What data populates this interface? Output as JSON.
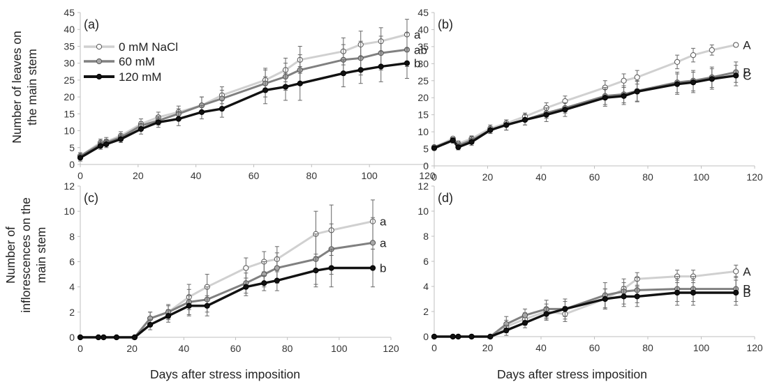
{
  "figure": {
    "ylabel_top_line1": "Number of leaves on",
    "ylabel_top_line2": "the main stem",
    "ylabel_bottom_line1": "Number of",
    "ylabel_bottom_line2": "inflorescences on the",
    "ylabel_bottom_line3": "main stem",
    "xlabel": "Days after stress imposition",
    "colors": {
      "s0": "#d0d0d0",
      "s60": "#808080",
      "s120": "#111111",
      "axis": "#bfbfbf"
    }
  },
  "chart_data": [
    {
      "id": "a",
      "type": "line",
      "panel_label": "(a)",
      "xlim": [
        0,
        120
      ],
      "xticks": [
        0,
        20,
        40,
        60,
        80,
        100,
        120
      ],
      "ylim": [
        0,
        45
      ],
      "yticks": [
        0,
        5,
        10,
        15,
        20,
        25,
        30,
        35,
        40,
        45
      ],
      "legend": [
        "0 mM NaCl",
        "60 mM",
        "120 mM"
      ],
      "x": [
        0,
        7,
        9,
        14,
        21,
        27,
        34,
        42,
        49,
        64,
        71,
        76,
        91,
        97,
        104,
        113
      ],
      "series": [
        {
          "name": "0 mM NaCl",
          "values": [
            2.5,
            6.5,
            6.8,
            8.5,
            12,
            14,
            15.5,
            17.5,
            20.5,
            25,
            28,
            31,
            33.5,
            35.5,
            36.5,
            38.5
          ],
          "err": [
            1,
            1,
            1.2,
            1.2,
            1.5,
            1.5,
            1.8,
            2.5,
            2.5,
            3.5,
            3.5,
            4,
            4,
            4,
            4,
            4.5
          ],
          "letter": "a"
        },
        {
          "name": "60 mM",
          "values": [
            2.5,
            6,
            6.5,
            8,
            11.5,
            13,
            15,
            17.5,
            19.5,
            24,
            26,
            28,
            31,
            31.5,
            33,
            34
          ],
          "err": [
            1,
            1,
            1,
            1,
            1.2,
            1.3,
            1.5,
            2.5,
            2.5,
            4,
            4,
            4.5,
            4.5,
            5,
            5,
            5
          ],
          "letter": "ab"
        },
        {
          "name": "120 mM",
          "values": [
            2,
            5.5,
            6,
            7.5,
            10.5,
            12.5,
            13.5,
            15.5,
            16.5,
            22,
            23,
            24,
            27,
            28,
            29,
            30
          ],
          "err": [
            1,
            1,
            1,
            1,
            1.5,
            1.5,
            2,
            2,
            2.5,
            4,
            4,
            5,
            4,
            4,
            4.5,
            4.5
          ],
          "letter": "b"
        }
      ]
    },
    {
      "id": "b",
      "type": "line",
      "panel_label": "(b)",
      "xlim": [
        0,
        120
      ],
      "xticks": [
        0,
        20,
        40,
        60,
        80,
        100,
        120
      ],
      "ylim": [
        0,
        45
      ],
      "yticks": [
        0,
        5,
        10,
        15,
        20,
        25,
        30,
        35,
        40,
        45
      ],
      "x": [
        0,
        7,
        9,
        14,
        21,
        27,
        34,
        42,
        49,
        64,
        71,
        76,
        91,
        97,
        104,
        113
      ],
      "series": [
        {
          "name": "0 mM NaCl",
          "values": [
            5.5,
            8,
            6.5,
            8,
            11,
            12.5,
            14.5,
            17,
            19,
            23,
            25,
            26,
            30.5,
            32.5,
            34,
            35.5
          ],
          "err": [
            0.5,
            0.5,
            0.8,
            0.8,
            1,
            1,
            1,
            1.5,
            1.5,
            2,
            2,
            2,
            2,
            2,
            1.5,
            0.5
          ],
          "letter": "A"
        },
        {
          "name": "60 mM",
          "values": [
            5.5,
            7.5,
            6,
            7.5,
            10.5,
            12,
            13.5,
            15.5,
            17,
            20.5,
            21,
            22,
            24.5,
            25,
            26,
            27.5
          ],
          "err": [
            0.5,
            0.8,
            0.8,
            1,
            1,
            1.5,
            1.5,
            1.5,
            1.5,
            2.5,
            2.5,
            3,
            3,
            3,
            3,
            3
          ],
          "letter": "B"
        },
        {
          "name": "120 mM",
          "values": [
            5.2,
            7.5,
            5.5,
            7,
            10.5,
            12,
            13.5,
            15,
            16.5,
            20,
            20.5,
            21.8,
            24,
            24.5,
            25.5,
            26.5
          ],
          "err": [
            0.5,
            0.8,
            0.8,
            1,
            1,
            1.5,
            1.5,
            2,
            2,
            2.5,
            2.5,
            3,
            3,
            3,
            3,
            3
          ],
          "letter": "C"
        }
      ]
    },
    {
      "id": "c",
      "type": "line",
      "panel_label": "(c)",
      "xlim": [
        0,
        120
      ],
      "xticks": [
        0,
        20,
        40,
        60,
        80,
        100,
        120
      ],
      "ylim": [
        0,
        12
      ],
      "yticks": [
        0,
        2,
        4,
        6,
        8,
        10,
        12
      ],
      "x": [
        0,
        7,
        9,
        14,
        21,
        27,
        34,
        42,
        49,
        64,
        71,
        76,
        91,
        97,
        113
      ],
      "series": [
        {
          "name": "0 mM NaCl",
          "values": [
            0,
            0,
            0,
            0,
            0,
            1.5,
            2,
            3.2,
            4,
            5.5,
            6,
            6.2,
            8.2,
            8.5,
            9.2
          ],
          "err": [
            0,
            0,
            0,
            0,
            0,
            0.5,
            0.6,
            1,
            1,
            0.8,
            0.8,
            1,
            1.8,
            2,
            1.7
          ],
          "letter": "a"
        },
        {
          "name": "60 mM",
          "values": [
            0,
            0,
            0,
            0,
            0,
            1.5,
            2,
            2.8,
            3,
            4.3,
            5,
            5.5,
            6.2,
            7,
            7.5
          ],
          "err": [
            0,
            0,
            0,
            0,
            0,
            0.5,
            0.5,
            1,
            1,
            0.8,
            1,
            1.2,
            2,
            2,
            2
          ],
          "letter": "a"
        },
        {
          "name": "120 mM",
          "values": [
            0,
            0,
            0,
            0,
            0,
            1,
            1.7,
            2.5,
            2.5,
            4,
            4.3,
            4.5,
            5.3,
            5.5,
            5.5
          ],
          "err": [
            0,
            0,
            0,
            0,
            0,
            0.4,
            0.5,
            0.8,
            0.8,
            0.7,
            0.6,
            0.8,
            1.3,
            1.5,
            1.5
          ],
          "letter": "b"
        }
      ]
    },
    {
      "id": "d",
      "type": "line",
      "panel_label": "(d)",
      "xlim": [
        0,
        120
      ],
      "xticks": [
        0,
        20,
        40,
        60,
        80,
        100,
        120
      ],
      "ylim": [
        0,
        12
      ],
      "yticks": [
        0,
        2,
        4,
        6,
        8,
        10,
        12
      ],
      "x": [
        0,
        7,
        9,
        14,
        21,
        27,
        34,
        42,
        49,
        64,
        71,
        76,
        91,
        97,
        113
      ],
      "series": [
        {
          "name": "0 mM NaCl",
          "values": [
            0,
            0,
            0,
            0,
            0,
            0.8,
            1.4,
            2,
            1.8,
            3,
            3.8,
            4.6,
            4.8,
            4.8,
            5.2
          ],
          "err": [
            0,
            0,
            0,
            0,
            0,
            0.5,
            0.5,
            0.6,
            0.6,
            0.8,
            0.5,
            0.5,
            0.5,
            0.5,
            0.5
          ],
          "letter": "A"
        },
        {
          "name": "60 mM",
          "values": [
            0,
            0,
            0,
            0,
            0,
            1,
            1.7,
            2.2,
            2.2,
            3.3,
            3.6,
            3.7,
            3.8,
            3.8,
            3.8
          ],
          "err": [
            0,
            0,
            0,
            0,
            0,
            0.6,
            0.5,
            0.7,
            0.8,
            1,
            1,
            1,
            1,
            1,
            1
          ],
          "letter": "B"
        },
        {
          "name": "120 mM",
          "values": [
            0,
            0,
            0,
            0,
            0,
            0.5,
            1.1,
            1.8,
            2.2,
            3,
            3.2,
            3.2,
            3.5,
            3.5,
            3.5
          ],
          "err": [
            0,
            0,
            0,
            0,
            0,
            0.4,
            0.4,
            0.5,
            0.6,
            0.8,
            0.8,
            0.8,
            1,
            1,
            1
          ],
          "letter": "B"
        }
      ]
    }
  ]
}
